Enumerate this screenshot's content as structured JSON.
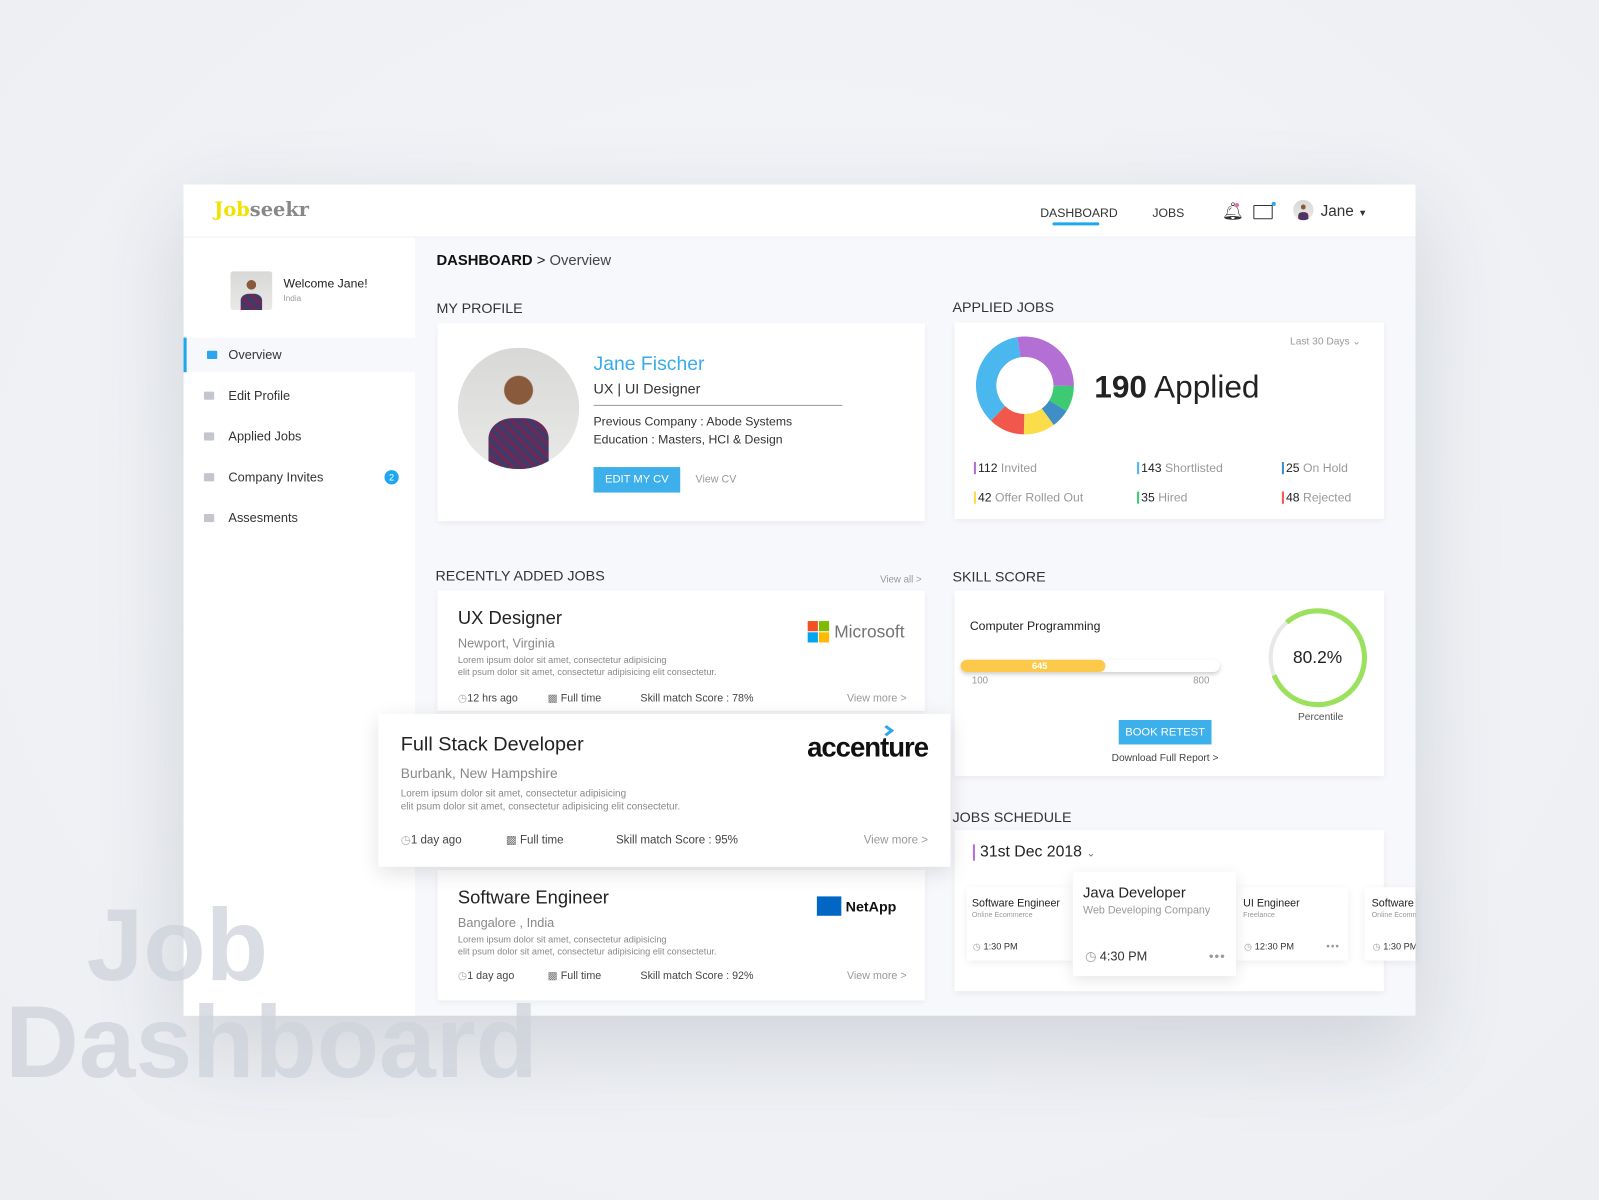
{
  "app": {
    "logo_a": "Job",
    "logo_b": "seekr"
  },
  "nav": {
    "dashboard": "DASHBOARD",
    "jobs": "JOBS",
    "user": "Jane"
  },
  "sidebar": {
    "welcome": "Welcome Jane!",
    "country": "India",
    "items": [
      {
        "label": "Overview"
      },
      {
        "label": "Edit Profile"
      },
      {
        "label": "Applied Jobs"
      },
      {
        "label": "Company Invites",
        "badge": "2"
      },
      {
        "label": "Assesments"
      }
    ]
  },
  "breadcrumb": {
    "root": "DASHBOARD",
    "sep": ">",
    "current": "Overview"
  },
  "profile": {
    "section": "MY PROFILE",
    "name": "Jane Fischer",
    "role": "UX | UI Designer",
    "company": "Previous Company : Abode Systems",
    "education": "Education : Masters, HCI & Design",
    "edit": "EDIT MY CV",
    "view": "View CV"
  },
  "applied": {
    "section": "APPLIED JOBS",
    "range": "Last 30 Days",
    "total": "190",
    "total_label": "Applied",
    "stats": [
      {
        "n": "112",
        "label": "Invited",
        "color": "#b36fd4"
      },
      {
        "n": "143",
        "label": "Shortlisted",
        "color": "#4bb7ef"
      },
      {
        "n": "25",
        "label": "On Hold",
        "color": "#3d8fc6"
      },
      {
        "n": "42",
        "label": "Offer Rolled Out",
        "color": "#fbdc4b"
      },
      {
        "n": "35",
        "label": "Hired",
        "color": "#3dca72"
      },
      {
        "n": "48",
        "label": "Rejected",
        "color": "#f2574b"
      }
    ]
  },
  "recent": {
    "section": "RECENTLY ADDED JOBS",
    "view_all": "View all >",
    "jobs": [
      {
        "title": "UX Designer",
        "loc": "Newport, Virginia",
        "l1": "Lorem ipsum dolor sit amet, consectetur adipisicing",
        "l2": "elit psum dolor sit amet, consectetur adipisicing elit consectetur.",
        "time": "12 hrs ago",
        "type": "Full time",
        "score": "Skill match Score : 78%",
        "more": "View more >",
        "company": "Microsoft"
      },
      {
        "title": "Full Stack Developer",
        "loc": "Burbank, New Hampshire",
        "l1": "Lorem ipsum dolor sit amet, consectetur adipisicing",
        "l2": "elit psum dolor sit amet, consectetur adipisicing elit consectetur.",
        "time": "1 day ago",
        "type": "Full time",
        "score": "Skill match Score : 95%",
        "more": "View more >",
        "company": "accenture"
      },
      {
        "title": "Software Engineer",
        "loc": "Bangalore , India",
        "l1": "Lorem ipsum dolor sit amet, consectetur adipisicing",
        "l2": "elit psum dolor sit amet, consectetur adipisicing elit consectetur.",
        "time": "1 day ago",
        "type": "Full time",
        "score": "Skill match Score : 92%",
        "more": "View more >",
        "company": "NetApp"
      }
    ]
  },
  "skill": {
    "section": "SKILL SCORE",
    "subject": "Computer Programming",
    "value": 645,
    "value_label": "645",
    "min": "100",
    "max": "800",
    "min_v": 100,
    "max_v": 800,
    "percentile": 80.2,
    "percentile_label": "80.2%",
    "percentile_caption": "Percentile",
    "retest": "BOOK RETEST",
    "report": "Download Full Report >",
    "bar_color": "#fdc94a",
    "ring_color": "#9be15d"
  },
  "schedule": {
    "section": "JOBS SCHEDULE",
    "date": "31st Dec 2018",
    "items": [
      {
        "title": "Software Engineer",
        "company": "Online Ecommerce",
        "time": "1:30 PM"
      },
      {
        "title": "Java Developer",
        "company": "Web Developing Company",
        "time": "4:30 PM"
      },
      {
        "title": "UI Engineer",
        "company": "Freelance",
        "time": "12:30 PM"
      },
      {
        "title": "Software Engineer",
        "company": "Online Ecommerce",
        "time": "1:30 PM"
      }
    ]
  },
  "watermark": {
    "l1": "Job",
    "l2": "Dashboard"
  }
}
